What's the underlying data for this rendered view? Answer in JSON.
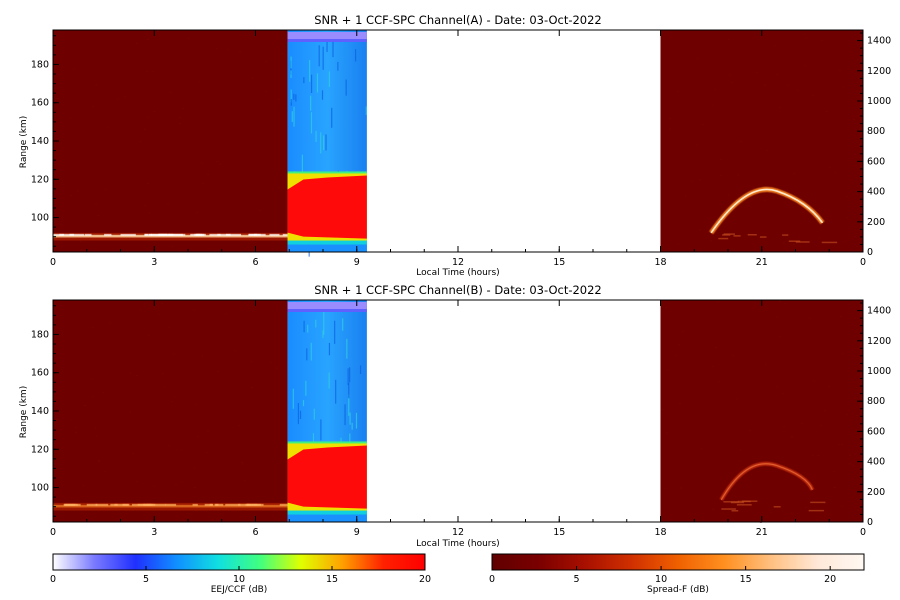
{
  "chart_data": [
    {
      "type": "heatmap",
      "title": "SNR + 1 CCF-SPC Channel(A) - Date: 03-Oct-2022",
      "xlabel": "Local Time (hours)",
      "ylabel": "Range (km)",
      "xlim": [
        0,
        24
      ],
      "ylim": [
        82,
        198
      ],
      "y2lim": [
        0,
        1470
      ],
      "x_ticks": [
        "0",
        "3",
        "6",
        "9",
        "12",
        "15",
        "18",
        "21",
        "0"
      ],
      "x_tick_values": [
        0,
        3,
        6,
        9,
        12,
        15,
        18,
        21,
        24
      ],
      "y_ticks": [
        100,
        120,
        140,
        160,
        180
      ],
      "y2_ticks": [
        0,
        200,
        400,
        600,
        800,
        1000,
        1200,
        1400
      ],
      "segments": [
        {
          "x0": 0.0,
          "x1": 6.95,
          "colorbar": "Spread-F",
          "background_db": 2,
          "features": [
            {
              "name": "EEJ/E-region echo band",
              "range_km": [
                88,
                92
              ],
              "peak_db": 20
            }
          ]
        },
        {
          "x0": 6.95,
          "x1": 9.3,
          "colorbar": "EEJ/CCF",
          "background_db": 6.5,
          "features": [
            {
              "name": "EEJ strong echo",
              "range_km": [
                89,
                122
              ],
              "peak_db": 20
            }
          ]
        },
        {
          "x0": 18.0,
          "x1": 24.0,
          "colorbar": "Spread-F",
          "background_db": 2,
          "features": [
            {
              "name": "F-region plume",
              "x_hours": [
                19.5,
                22.8
              ],
              "alt_km_right_axis": [
                180,
                430
              ],
              "peak_db": 20
            }
          ]
        }
      ]
    },
    {
      "type": "heatmap",
      "title": "SNR + 1 CCF-SPC Channel(B) - Date: 03-Oct-2022",
      "xlabel": "Local Time (hours)",
      "ylabel": "Range (km)",
      "xlim": [
        0,
        24
      ],
      "ylim": [
        82,
        198
      ],
      "y2lim": [
        0,
        1470
      ],
      "x_ticks": [
        "0",
        "3",
        "6",
        "9",
        "12",
        "15",
        "18",
        "21",
        "0"
      ],
      "x_tick_values": [
        0,
        3,
        6,
        9,
        12,
        15,
        18,
        21,
        24
      ],
      "y_ticks": [
        100,
        120,
        140,
        160,
        180
      ],
      "y2_ticks": [
        0,
        200,
        400,
        600,
        800,
        1000,
        1200,
        1400
      ],
      "segments": [
        {
          "x0": 0.0,
          "x1": 6.95,
          "colorbar": "Spread-F",
          "background_db": 2,
          "features": [
            {
              "name": "EEJ/E-region echo band",
              "range_km": [
                88,
                92
              ],
              "peak_db": 18
            }
          ]
        },
        {
          "x0": 6.95,
          "x1": 9.3,
          "colorbar": "EEJ/CCF",
          "background_db": 6.5,
          "features": [
            {
              "name": "EEJ strong echo",
              "range_km": [
                89,
                122
              ],
              "peak_db": 20
            }
          ]
        },
        {
          "x0": 18.0,
          "x1": 24.0,
          "colorbar": "Spread-F",
          "background_db": 2,
          "features": [
            {
              "name": "F-region plume",
              "x_hours": [
                19.8,
                22.5
              ],
              "alt_km_right_axis": [
                200,
                400
              ],
              "peak_db": 14
            }
          ]
        }
      ]
    }
  ],
  "colorbars": [
    {
      "label": "EEJ/CCF (dB)",
      "range": [
        0,
        20
      ],
      "ticks": [
        "0",
        "5",
        "10",
        "15",
        "20"
      ],
      "colormap": "rainbow"
    },
    {
      "label": "Spread-F (dB)",
      "range": [
        0,
        22
      ],
      "ticks": [
        "0",
        "5",
        "10",
        "15",
        "20"
      ],
      "colormap": "hot"
    }
  ],
  "colors": {
    "eej_stops": [
      "#ffffff",
      "#7a7aff",
      "#2030ff",
      "#1090ff",
      "#10e0e0",
      "#40ff80",
      "#e0ff00",
      "#ffa000",
      "#ff2000",
      "#ff0000"
    ],
    "spread_stops": [
      "#600000",
      "#7a0000",
      "#a81000",
      "#d03000",
      "#f06000",
      "#ff9020",
      "#ffc080",
      "#ffe8d8",
      "#fff8f2"
    ]
  }
}
